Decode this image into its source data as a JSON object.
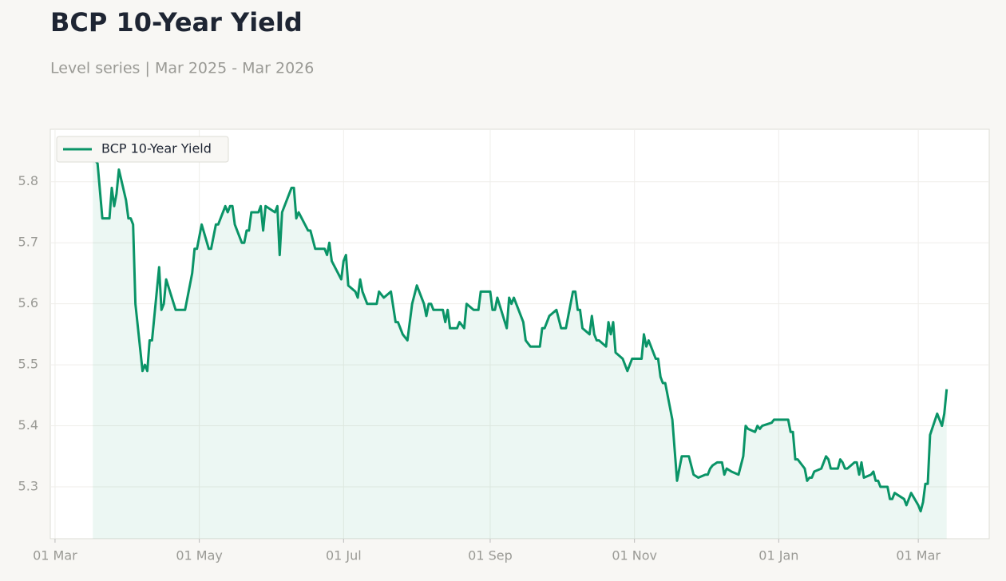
{
  "chart_data": {
    "type": "line",
    "title": "BCP 10-Year Yield",
    "subtitle": "Level series | Mar 2025 - Mar 2026",
    "x": [
      "2025-03-17",
      "2025-03-19",
      "2025-03-21",
      "2025-03-24",
      "2025-03-25",
      "2025-03-26",
      "2025-03-27",
      "2025-03-28",
      "2025-03-31",
      "2025-04-01",
      "2025-04-02",
      "2025-04-03",
      "2025-04-04",
      "2025-04-07",
      "2025-04-08",
      "2025-04-09",
      "2025-04-10",
      "2025-04-11",
      "2025-04-14",
      "2025-04-15",
      "2025-04-16",
      "2025-04-17",
      "2025-04-21",
      "2025-04-25",
      "2025-04-28",
      "2025-04-29",
      "2025-04-30",
      "2025-05-02",
      "2025-05-05",
      "2025-05-06",
      "2025-05-08",
      "2025-05-09",
      "2025-05-12",
      "2025-05-13",
      "2025-05-14",
      "2025-05-15",
      "2025-05-16",
      "2025-05-19",
      "2025-05-20",
      "2025-05-21",
      "2025-05-22",
      "2025-05-23",
      "2025-05-26",
      "2025-05-27",
      "2025-05-28",
      "2025-05-29",
      "2025-06-02",
      "2025-06-03",
      "2025-06-04",
      "2025-06-05",
      "2025-06-09",
      "2025-06-10",
      "2025-06-11",
      "2025-06-12",
      "2025-06-16",
      "2025-06-17",
      "2025-06-19",
      "2025-06-23",
      "2025-06-24",
      "2025-06-25",
      "2025-06-26",
      "2025-06-30",
      "2025-07-01",
      "2025-07-02",
      "2025-07-03",
      "2025-07-06",
      "2025-07-07",
      "2025-07-08",
      "2025-07-09",
      "2025-07-11",
      "2025-07-15",
      "2025-07-16",
      "2025-07-18",
      "2025-07-21",
      "2025-07-23",
      "2025-07-24",
      "2025-07-26",
      "2025-07-28",
      "2025-07-30",
      "2025-08-01",
      "2025-08-04",
      "2025-08-05",
      "2025-08-06",
      "2025-08-07",
      "2025-08-08",
      "2025-08-12",
      "2025-08-13",
      "2025-08-14",
      "2025-08-15",
      "2025-08-18",
      "2025-08-19",
      "2025-08-21",
      "2025-08-22",
      "2025-08-25",
      "2025-08-27",
      "2025-08-28",
      "2025-09-01",
      "2025-09-02",
      "2025-09-03",
      "2025-09-04",
      "2025-09-08",
      "2025-09-09",
      "2025-09-10",
      "2025-09-11",
      "2025-09-15",
      "2025-09-16",
      "2025-09-18",
      "2025-09-22",
      "2025-09-23",
      "2025-09-24",
      "2025-09-26",
      "2025-09-29",
      "2025-10-01",
      "2025-10-03",
      "2025-10-06",
      "2025-10-07",
      "2025-10-08",
      "2025-10-09",
      "2025-10-10",
      "2025-10-13",
      "2025-10-14",
      "2025-10-15",
      "2025-10-16",
      "2025-10-17",
      "2025-10-20",
      "2025-10-21",
      "2025-10-22",
      "2025-10-23",
      "2025-10-24",
      "2025-10-27",
      "2025-10-29",
      "2025-10-31",
      "2025-11-04",
      "2025-11-05",
      "2025-11-06",
      "2025-11-07",
      "2025-11-10",
      "2025-11-11",
      "2025-11-12",
      "2025-11-13",
      "2025-11-14",
      "2025-11-17",
      "2025-11-19",
      "2025-11-20",
      "2025-11-21",
      "2025-11-24",
      "2025-11-26",
      "2025-11-28",
      "2025-12-01",
      "2025-12-02",
      "2025-12-03",
      "2025-12-04",
      "2025-12-06",
      "2025-12-08",
      "2025-12-09",
      "2025-12-10",
      "2025-12-12",
      "2025-12-15",
      "2025-12-17",
      "2025-12-18",
      "2025-12-19",
      "2025-12-22",
      "2025-12-23",
      "2025-12-24",
      "2025-12-25",
      "2025-12-29",
      "2025-12-30",
      "2026-01-05",
      "2026-01-06",
      "2026-01-07",
      "2026-01-08",
      "2026-01-09",
      "2026-01-12",
      "2026-01-13",
      "2026-01-14",
      "2026-01-15",
      "2026-01-16",
      "2026-01-19",
      "2026-01-21",
      "2026-01-22",
      "2026-01-23",
      "2026-01-26",
      "2026-01-27",
      "2026-01-28",
      "2026-01-29",
      "2026-01-30",
      "2026-02-02",
      "2026-02-03",
      "2026-02-04",
      "2026-02-05",
      "2026-02-06",
      "2026-02-09",
      "2026-02-10",
      "2026-02-11",
      "2026-02-12",
      "2026-02-13",
      "2026-02-16",
      "2026-02-17",
      "2026-02-18",
      "2026-02-19",
      "2026-02-23",
      "2026-02-24",
      "2026-02-26",
      "2026-03-01",
      "2026-03-02",
      "2026-03-03",
      "2026-03-04",
      "2026-03-05",
      "2026-03-06",
      "2026-03-09",
      "2026-03-11",
      "2026-03-12",
      "2026-03-13"
    ],
    "series": [
      {
        "name": "BCP 10-Year Yield",
        "color": "#0a9467",
        "values": [
          5.84,
          5.83,
          5.74,
          5.74,
          5.79,
          5.76,
          5.78,
          5.82,
          5.77,
          5.74,
          5.74,
          5.73,
          5.6,
          5.49,
          5.5,
          5.49,
          5.54,
          5.54,
          5.66,
          5.59,
          5.6,
          5.64,
          5.59,
          5.59,
          5.65,
          5.69,
          5.69,
          5.73,
          5.69,
          5.69,
          5.73,
          5.73,
          5.76,
          5.75,
          5.76,
          5.76,
          5.73,
          5.7,
          5.7,
          5.72,
          5.72,
          5.75,
          5.75,
          5.76,
          5.72,
          5.76,
          5.75,
          5.76,
          5.68,
          5.75,
          5.79,
          5.79,
          5.74,
          5.75,
          5.72,
          5.72,
          5.69,
          5.69,
          5.68,
          5.7,
          5.67,
          5.64,
          5.67,
          5.68,
          5.63,
          5.62,
          5.61,
          5.64,
          5.62,
          5.6,
          5.6,
          5.62,
          5.61,
          5.62,
          5.57,
          5.57,
          5.55,
          5.54,
          5.6,
          5.63,
          5.6,
          5.58,
          5.6,
          5.6,
          5.59,
          5.59,
          5.57,
          5.59,
          5.56,
          5.56,
          5.57,
          5.56,
          5.6,
          5.59,
          5.59,
          5.62,
          5.62,
          5.59,
          5.59,
          5.61,
          5.56,
          5.61,
          5.6,
          5.61,
          5.57,
          5.54,
          5.53,
          5.53,
          5.56,
          5.56,
          5.58,
          5.59,
          5.56,
          5.56,
          5.62,
          5.62,
          5.59,
          5.59,
          5.56,
          5.55,
          5.58,
          5.55,
          5.54,
          5.54,
          5.53,
          5.57,
          5.55,
          5.57,
          5.52,
          5.51,
          5.49,
          5.51,
          5.51,
          5.55,
          5.53,
          5.54,
          5.51,
          5.51,
          5.48,
          5.47,
          5.47,
          5.41,
          5.31,
          5.33,
          5.35,
          5.35,
          5.32,
          5.315,
          5.32,
          5.32,
          5.33,
          5.335,
          5.34,
          5.34,
          5.32,
          5.33,
          5.325,
          5.32,
          5.35,
          5.4,
          5.395,
          5.39,
          5.4,
          5.395,
          5.4,
          5.405,
          5.41,
          5.41,
          5.39,
          5.39,
          5.345,
          5.345,
          5.33,
          5.31,
          5.315,
          5.315,
          5.325,
          5.33,
          5.35,
          5.345,
          5.33,
          5.33,
          5.345,
          5.34,
          5.33,
          5.33,
          5.34,
          5.34,
          5.32,
          5.34,
          5.315,
          5.32,
          5.325,
          5.31,
          5.31,
          5.3,
          5.3,
          5.28,
          5.28,
          5.29,
          5.28,
          5.27,
          5.29,
          5.27,
          5.26,
          5.275,
          5.305,
          5.305,
          5.385,
          5.42,
          5.4,
          5.42,
          5.46
        ]
      }
    ],
    "xlim": [
      "2025-02-27",
      "2026-03-31"
    ],
    "xticks": [
      {
        "value": "2025-03-01",
        "label": "01 Mar"
      },
      {
        "value": "2025-05-01",
        "label": "01 May"
      },
      {
        "value": "2025-07-01",
        "label": "01 Jul"
      },
      {
        "value": "2025-09-01",
        "label": "01 Sep"
      },
      {
        "value": "2025-11-01",
        "label": "01 Nov"
      },
      {
        "value": "2026-01-01",
        "label": "01 Jan"
      },
      {
        "value": "2026-03-01",
        "label": "01 Mar"
      }
    ],
    "ylim": [
      5.215,
      5.886
    ],
    "yticks": [
      5.3,
      5.4,
      5.5,
      5.6,
      5.7,
      5.8
    ],
    "grid": true,
    "fill_area": true,
    "legend": "upper left"
  }
}
